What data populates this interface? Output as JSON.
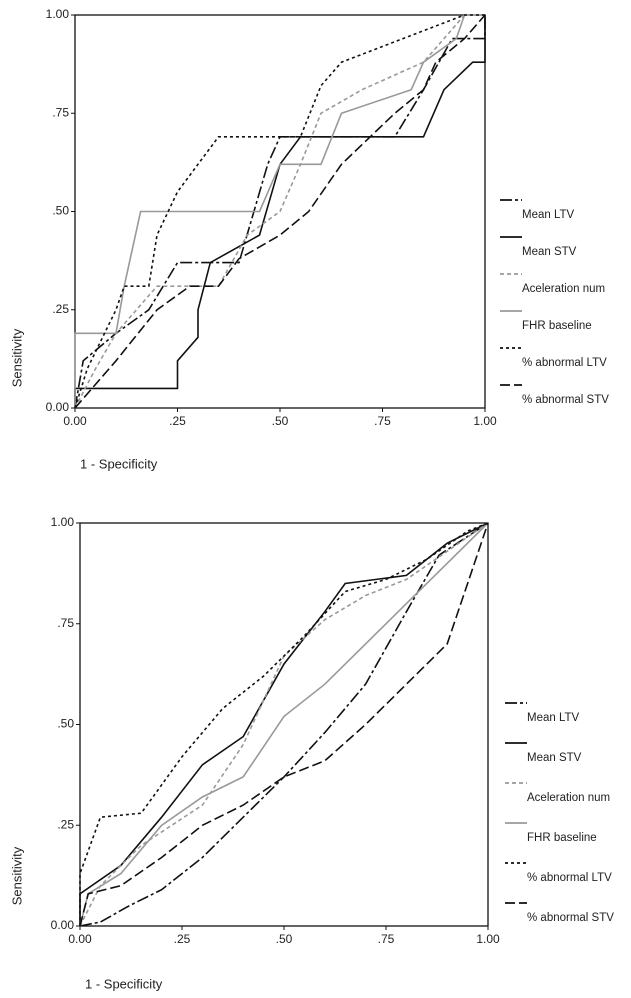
{
  "chart_data": [
    {
      "type": "line",
      "xlabel": "1 - Specificity",
      "ylabel": "Sensitivity",
      "xlim": [
        0,
        1
      ],
      "ylim": [
        0,
        1
      ],
      "xticks": [
        {
          "value": 0,
          "label": "0.00"
        },
        {
          "value": 0.25,
          "label": ".25"
        },
        {
          "value": 0.5,
          "label": ".50"
        },
        {
          "value": 0.75,
          "label": ".75"
        },
        {
          "value": 1,
          "label": "1.00"
        }
      ],
      "yticks": [
        {
          "value": 0,
          "label": "0.00"
        },
        {
          "value": 0.25,
          "label": ".25"
        },
        {
          "value": 0.5,
          "label": ".50"
        },
        {
          "value": 0.75,
          "label": ".75"
        },
        {
          "value": 1,
          "label": "1.00"
        }
      ],
      "series": [
        {
          "name": "Mean LTV",
          "color": "#111111",
          "dash": "12,3,3,3",
          "x": [
            0,
            0.02,
            0.1,
            0.18,
            0.25,
            0.4,
            0.47,
            0.5,
            0.78,
            0.85,
            0.92,
            1,
            1
          ],
          "values": [
            0,
            0.12,
            0.19,
            0.25,
            0.37,
            0.37,
            0.62,
            0.69,
            0.69,
            0.81,
            0.94,
            0.94,
            1
          ]
        },
        {
          "name": "Mean STV",
          "color": "#111111",
          "dash": "none",
          "x": [
            0,
            0,
            0.25,
            0.25,
            0.3,
            0.3,
            0.33,
            0.45,
            0.5,
            0.55,
            0.85,
            0.9,
            0.97,
            1,
            1
          ],
          "values": [
            0,
            0.05,
            0.05,
            0.12,
            0.18,
            0.25,
            0.37,
            0.44,
            0.62,
            0.69,
            0.69,
            0.81,
            0.88,
            0.88,
            1
          ]
        },
        {
          "name": "Aceleration num",
          "color": "#999999",
          "dash": "4,3",
          "x": [
            0,
            0.05,
            0.1,
            0.2,
            0.35,
            0.42,
            0.5,
            0.55,
            0.6,
            0.7,
            0.85,
            0.95,
            1
          ],
          "values": [
            0,
            0.1,
            0.19,
            0.31,
            0.31,
            0.44,
            0.5,
            0.62,
            0.75,
            0.81,
            0.88,
            1,
            1
          ]
        },
        {
          "name": "FHR baseline",
          "color": "#999999",
          "dash": "none",
          "x": [
            0,
            0,
            0.1,
            0.12,
            0.16,
            0.45,
            0.5,
            0.6,
            0.65,
            0.82,
            0.85,
            0.93,
            0.95,
            1
          ],
          "values": [
            0,
            0.19,
            0.19,
            0.31,
            0.5,
            0.5,
            0.62,
            0.62,
            0.75,
            0.81,
            0.88,
            0.94,
            1,
            1
          ]
        },
        {
          "name": "% abnormal LTV",
          "color": "#111111",
          "dash": "3,3",
          "x": [
            0,
            0.03,
            0.1,
            0.12,
            0.18,
            0.2,
            0.25,
            0.3,
            0.35,
            0.55,
            0.6,
            0.65,
            0.8,
            0.95,
            1
          ],
          "values": [
            0,
            0.1,
            0.25,
            0.31,
            0.31,
            0.44,
            0.55,
            0.62,
            0.69,
            0.69,
            0.82,
            0.88,
            0.94,
            1,
            1
          ]
        },
        {
          "name": "% abnormal STV",
          "color": "#111111",
          "dash": "10,4",
          "x": [
            0,
            0.05,
            0.1,
            0.2,
            0.28,
            0.35,
            0.4,
            0.5,
            0.57,
            0.65,
            0.72,
            0.78,
            0.85,
            0.88,
            0.95,
            1
          ],
          "values": [
            0,
            0.06,
            0.12,
            0.25,
            0.31,
            0.31,
            0.38,
            0.44,
            0.5,
            0.62,
            0.69,
            0.75,
            0.81,
            0.88,
            0.94,
            1
          ]
        }
      ]
    },
    {
      "type": "line",
      "xlabel": "1 - Specificity",
      "ylabel": "Sensitivity",
      "xlim": [
        0,
        1
      ],
      "ylim": [
        0,
        1
      ],
      "xticks": [
        {
          "value": 0,
          "label": "0.00"
        },
        {
          "value": 0.25,
          "label": ".25"
        },
        {
          "value": 0.5,
          "label": ".50"
        },
        {
          "value": 0.75,
          "label": ".75"
        },
        {
          "value": 1,
          "label": "1.00"
        }
      ],
      "yticks": [
        {
          "value": 0,
          "label": "0.00"
        },
        {
          "value": 0.25,
          "label": ".25"
        },
        {
          "value": 0.5,
          "label": ".50"
        },
        {
          "value": 0.75,
          "label": ".75"
        },
        {
          "value": 1,
          "label": "1.00"
        }
      ],
      "series": [
        {
          "name": "Mean LTV",
          "color": "#111111",
          "dash": "12,3,3,3",
          "x": [
            0,
            0.05,
            0.12,
            0.2,
            0.3,
            0.4,
            0.5,
            0.6,
            0.7,
            0.8,
            0.88,
            1
          ],
          "values": [
            0,
            0.01,
            0.05,
            0.09,
            0.17,
            0.27,
            0.37,
            0.48,
            0.6,
            0.78,
            0.92,
            1
          ]
        },
        {
          "name": "Mean STV",
          "color": "#111111",
          "dash": "none",
          "x": [
            0,
            0,
            0.1,
            0.2,
            0.3,
            0.4,
            0.5,
            0.6,
            0.65,
            0.8,
            0.9,
            1
          ],
          "values": [
            0,
            0.08,
            0.15,
            0.27,
            0.4,
            0.47,
            0.65,
            0.78,
            0.85,
            0.87,
            0.95,
            1
          ]
        },
        {
          "name": "Aceleration num",
          "color": "#999999",
          "dash": "4,3",
          "x": [
            0,
            0.05,
            0.15,
            0.3,
            0.4,
            0.5,
            0.6,
            0.7,
            0.8,
            0.9,
            1
          ],
          "values": [
            0,
            0.1,
            0.2,
            0.3,
            0.45,
            0.67,
            0.76,
            0.82,
            0.86,
            0.93,
            1
          ]
        },
        {
          "name": "FHR baseline",
          "color": "#999999",
          "dash": "none",
          "x": [
            0,
            0.02,
            0.1,
            0.2,
            0.3,
            0.4,
            0.5,
            0.6,
            0.7,
            0.8,
            0.9,
            1
          ],
          "values": [
            0,
            0.08,
            0.13,
            0.25,
            0.32,
            0.37,
            0.52,
            0.6,
            0.7,
            0.8,
            0.9,
            1
          ]
        },
        {
          "name": "% abnormal LTV",
          "color": "#111111",
          "dash": "3,3",
          "x": [
            0,
            0,
            0.05,
            0.15,
            0.25,
            0.35,
            0.45,
            0.55,
            0.65,
            0.75,
            0.85,
            0.95,
            1
          ],
          "values": [
            0,
            0.13,
            0.27,
            0.28,
            0.42,
            0.54,
            0.62,
            0.72,
            0.83,
            0.86,
            0.91,
            0.98,
            1
          ]
        },
        {
          "name": "% abnormal STV",
          "color": "#111111",
          "dash": "10,4",
          "x": [
            0,
            0.02,
            0.1,
            0.2,
            0.3,
            0.4,
            0.5,
            0.6,
            0.7,
            0.8,
            0.9,
            0.95,
            1
          ],
          "values": [
            0,
            0.08,
            0.1,
            0.17,
            0.25,
            0.3,
            0.37,
            0.41,
            0.5,
            0.6,
            0.7,
            0.85,
            1
          ]
        }
      ]
    }
  ]
}
